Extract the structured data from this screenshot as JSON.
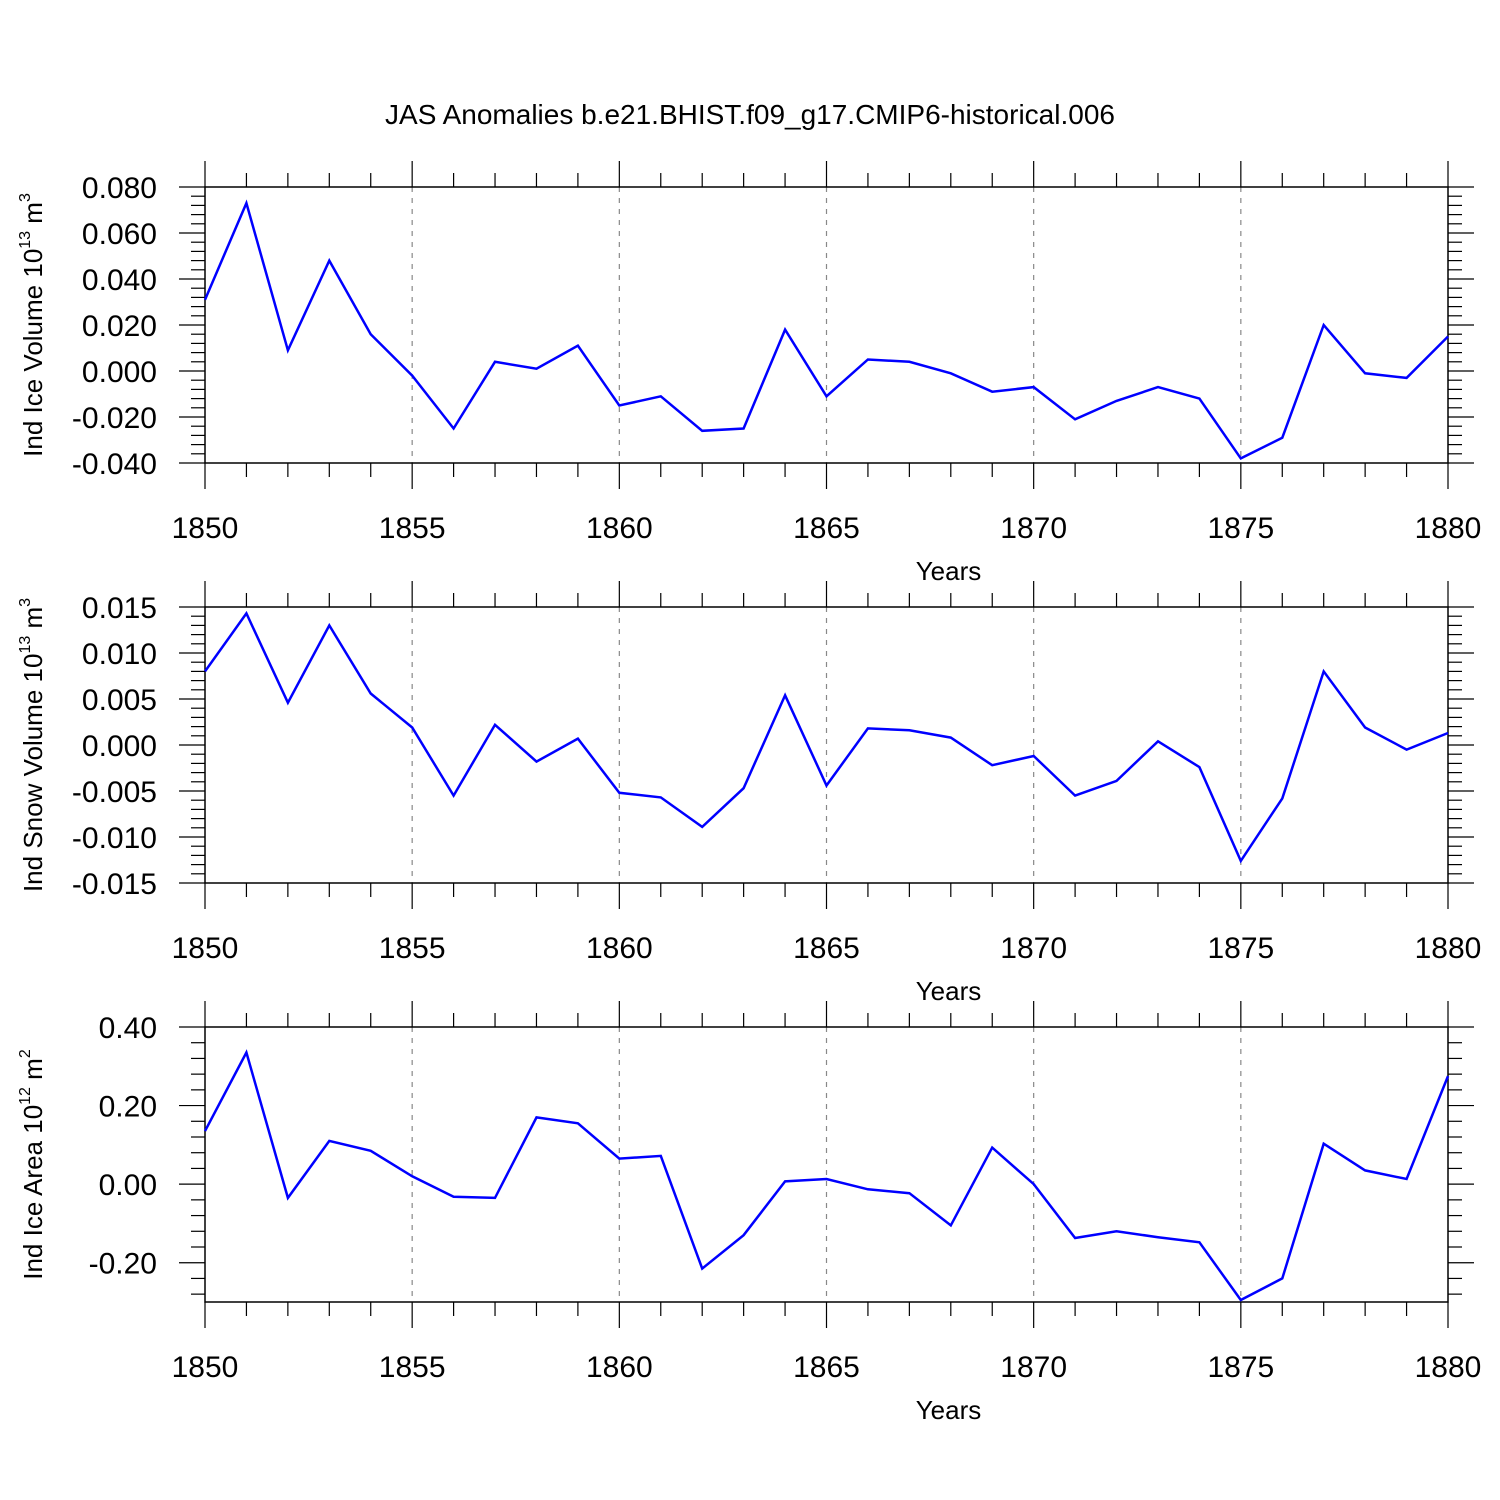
{
  "chart_data": {
    "title": "JAS Anomalies b.e21.BHIST.f09_g17.CMIP6-historical.006",
    "line_color": "#0000ff",
    "panels": [
      {
        "type": "line",
        "name": "Ind Ice Volume",
        "ylabel": "Ind Ice Volume 10",
        "ylabel_exp": "13",
        "ylabel_unit": " m",
        "ylabel_unit_exp": "3",
        "xlabel": "Years",
        "xlim": [
          1850,
          1880
        ],
        "ylim": [
          -0.04,
          0.08
        ],
        "xticks": [
          1850,
          1855,
          1860,
          1865,
          1870,
          1875,
          1880
        ],
        "xtick_labels": [
          "1850",
          "1855",
          "1860",
          "1865",
          "1870",
          "1875",
          "1880"
        ],
        "yticks": [
          -0.04,
          -0.02,
          0.0,
          0.02,
          0.04,
          0.06,
          0.08
        ],
        "ytick_labels": [
          "-0.040",
          "-0.020",
          "0.000",
          "0.020",
          "0.040",
          "0.060",
          "0.080"
        ],
        "x": [
          1850,
          1851,
          1852,
          1853,
          1854,
          1855,
          1856,
          1857,
          1858,
          1859,
          1860,
          1861,
          1862,
          1863,
          1864,
          1865,
          1866,
          1867,
          1868,
          1869,
          1870,
          1871,
          1872,
          1873,
          1874,
          1875,
          1876,
          1877,
          1878,
          1879,
          1880
        ],
        "y": [
          0.031,
          0.073,
          0.009,
          0.048,
          0.016,
          -0.002,
          -0.025,
          0.004,
          0.001,
          0.011,
          -0.015,
          -0.011,
          -0.026,
          -0.025,
          0.018,
          -0.011,
          0.005,
          0.004,
          -0.001,
          -0.009,
          -0.007,
          -0.021,
          -0.013,
          -0.007,
          -0.012,
          -0.038,
          -0.029,
          0.02,
          -0.001,
          -0.003,
          0.015
        ]
      },
      {
        "type": "line",
        "name": "Ind Snow Volume",
        "ylabel": "Ind Snow Volume 10",
        "ylabel_exp": "13",
        "ylabel_unit": " m",
        "ylabel_unit_exp": "3",
        "xlabel": "Years",
        "xlim": [
          1850,
          1880
        ],
        "ylim": [
          -0.015,
          0.015
        ],
        "xticks": [
          1850,
          1855,
          1860,
          1865,
          1870,
          1875,
          1880
        ],
        "xtick_labels": [
          "1850",
          "1855",
          "1860",
          "1865",
          "1870",
          "1875",
          "1880"
        ],
        "yticks": [
          -0.015,
          -0.01,
          -0.005,
          0.0,
          0.005,
          0.01,
          0.015
        ],
        "ytick_labels": [
          "-0.015",
          "-0.010",
          "-0.005",
          "0.000",
          "0.005",
          "0.010",
          "0.015"
        ],
        "x": [
          1850,
          1851,
          1852,
          1853,
          1854,
          1855,
          1856,
          1857,
          1858,
          1859,
          1860,
          1861,
          1862,
          1863,
          1864,
          1865,
          1866,
          1867,
          1868,
          1869,
          1870,
          1871,
          1872,
          1873,
          1874,
          1875,
          1876,
          1877,
          1878,
          1879,
          1880
        ],
        "y": [
          0.008,
          0.0143,
          0.0046,
          0.013,
          0.0056,
          0.0019,
          -0.0055,
          0.0022,
          -0.0018,
          0.0007,
          -0.0052,
          -0.0057,
          -0.0089,
          -0.0047,
          0.0054,
          -0.0044,
          0.0018,
          0.0016,
          0.0008,
          -0.0022,
          -0.0012,
          -0.0055,
          -0.0039,
          0.0004,
          -0.0024,
          -0.0126,
          -0.0058,
          0.008,
          0.0019,
          -0.0005,
          0.0013
        ]
      },
      {
        "type": "line",
        "name": "Ind Ice Area",
        "ylabel": "Ind Ice Area 10",
        "ylabel_exp": "12",
        "ylabel_unit": " m",
        "ylabel_unit_exp": "2",
        "xlabel": "Years",
        "xlim": [
          1850,
          1880
        ],
        "ylim": [
          -0.3,
          0.4
        ],
        "xticks": [
          1850,
          1855,
          1860,
          1865,
          1870,
          1875,
          1880
        ],
        "xtick_labels": [
          "1850",
          "1855",
          "1860",
          "1865",
          "1870",
          "1875",
          "1880"
        ],
        "yticks": [
          -0.2,
          0.0,
          0.2,
          0.4
        ],
        "ytick_labels": [
          "-0.20",
          "0.00",
          "0.20",
          "0.40"
        ],
        "x": [
          1850,
          1851,
          1852,
          1853,
          1854,
          1855,
          1856,
          1857,
          1858,
          1859,
          1860,
          1861,
          1862,
          1863,
          1864,
          1865,
          1866,
          1867,
          1868,
          1869,
          1870,
          1871,
          1872,
          1873,
          1874,
          1875,
          1876,
          1877,
          1878,
          1879,
          1880
        ],
        "y": [
          0.135,
          0.335,
          -0.035,
          0.11,
          0.085,
          0.02,
          -0.032,
          -0.035,
          0.17,
          0.155,
          0.065,
          0.072,
          -0.215,
          -0.13,
          0.007,
          0.013,
          -0.013,
          -0.023,
          -0.105,
          0.093,
          0.0,
          -0.137,
          -0.12,
          -0.135,
          -0.148,
          -0.295,
          -0.24,
          0.103,
          0.035,
          0.013,
          0.275
        ]
      }
    ]
  }
}
